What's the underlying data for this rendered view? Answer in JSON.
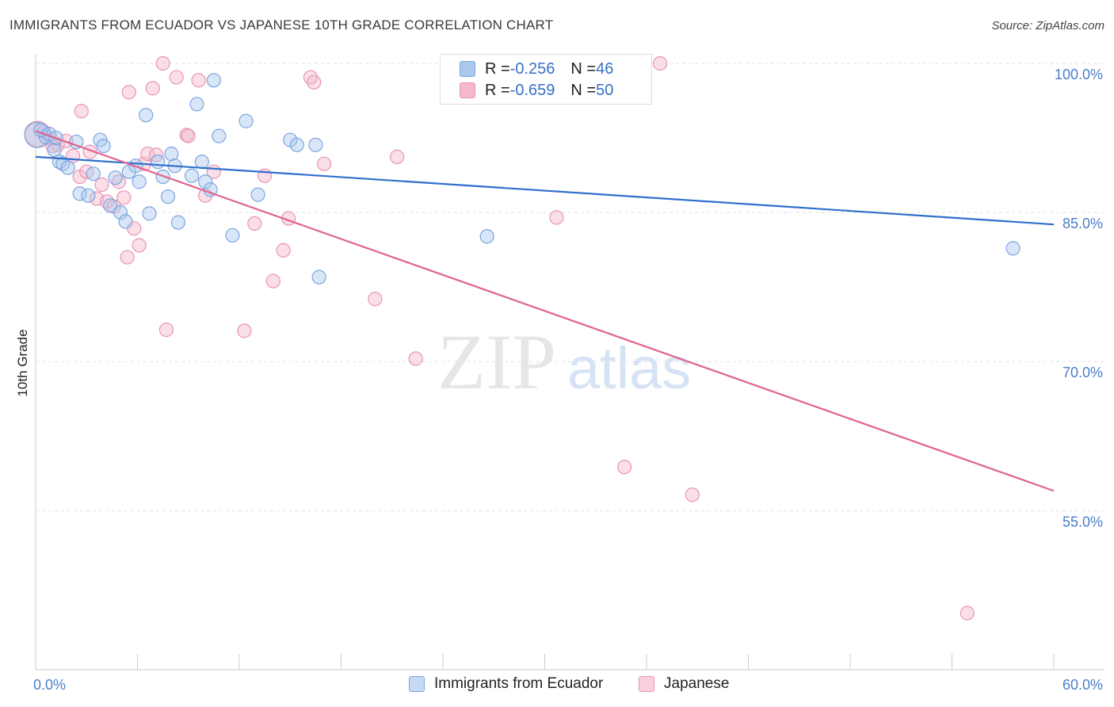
{
  "title": "IMMIGRANTS FROM ECUADOR VS JAPANESE 10TH GRADE CORRELATION CHART",
  "source": "Source: ZipAtlas.com",
  "watermark": {
    "zip": "ZIP",
    "atlas": "atlas"
  },
  "legend": {
    "series": [
      {
        "r_label": "R = ",
        "r_value": "-0.256",
        "n_label": "N = ",
        "n_value": "46"
      },
      {
        "r_label": "R = ",
        "r_value": "-0.659",
        "n_label": "N = ",
        "n_value": "50"
      }
    ]
  },
  "colors": {
    "blue_fill": "#aac8ee",
    "blue_stroke": "#7ba6e0",
    "blue_line": "#2f6fcc",
    "pink_fill": "#f5b8cd",
    "pink_stroke": "#e994b3",
    "pink_line": "#e0648f",
    "grid": "#e0e0e0",
    "tick_label": "#4a7ec9"
  },
  "chart_data": {
    "type": "scatter",
    "title": "IMMIGRANTS FROM ECUADOR VS JAPANESE 10TH GRADE CORRELATION CHART",
    "xlabel": "",
    "ylabel": "10th Grade",
    "xlim": [
      0,
      60
    ],
    "ylim": [
      39,
      100
    ],
    "x_tick_labels": [
      "0.0%",
      "60.0%"
    ],
    "y_ticks": [
      55,
      70,
      85,
      100
    ],
    "y_tick_labels": [
      "55.0%",
      "70.0%",
      "85.0%",
      "100.0%"
    ],
    "grid": true,
    "series": [
      {
        "name": "Immigrants from Ecuador",
        "r": -0.256,
        "n": 46,
        "trend": {
          "x": [
            0,
            60
          ],
          "y": [
            90.6,
            83.8
          ]
        },
        "points": [
          [
            0.1,
            92.8
          ],
          [
            0.6,
            92.6
          ],
          [
            1.1,
            91.3
          ],
          [
            1.4,
            90.1
          ],
          [
            1.6,
            89.9
          ],
          [
            1.9,
            89.5
          ],
          [
            2.4,
            92.1
          ],
          [
            2.6,
            86.9
          ],
          [
            3.1,
            86.7
          ],
          [
            3.4,
            88.9
          ],
          [
            3.8,
            92.3
          ],
          [
            4.0,
            91.7
          ],
          [
            4.4,
            85.7
          ],
          [
            4.7,
            88.5
          ],
          [
            5.0,
            85.0
          ],
          [
            5.3,
            84.1
          ],
          [
            5.5,
            89.1
          ],
          [
            5.9,
            89.7
          ],
          [
            6.1,
            88.1
          ],
          [
            6.5,
            94.8
          ],
          [
            6.7,
            84.9
          ],
          [
            7.2,
            90.1
          ],
          [
            7.5,
            88.6
          ],
          [
            7.8,
            86.6
          ],
          [
            8.0,
            90.9
          ],
          [
            8.2,
            89.7
          ],
          [
            8.4,
            84.0
          ],
          [
            9.2,
            88.7
          ],
          [
            9.5,
            95.9
          ],
          [
            9.8,
            90.1
          ],
          [
            10.0,
            88.1
          ],
          [
            10.3,
            87.3
          ],
          [
            10.5,
            98.3
          ],
          [
            10.8,
            92.7
          ],
          [
            11.6,
            82.7
          ],
          [
            12.4,
            94.2
          ],
          [
            13.1,
            86.8
          ],
          [
            15.0,
            92.3
          ],
          [
            15.4,
            91.8
          ],
          [
            16.5,
            91.8
          ],
          [
            16.7,
            78.5
          ],
          [
            26.6,
            82.6
          ],
          [
            57.6,
            81.4
          ],
          [
            0.3,
            93.3
          ],
          [
            0.8,
            92.9
          ],
          [
            1.2,
            92.5
          ]
        ]
      },
      {
        "name": "Japanese",
        "r": -0.659,
        "n": 50,
        "trend": {
          "x": [
            0,
            60
          ],
          "y": [
            93.2,
            57.0
          ]
        },
        "points": [
          [
            0.1,
            92.9
          ],
          [
            0.5,
            93.1
          ],
          [
            0.9,
            92.4
          ],
          [
            1.3,
            91.8
          ],
          [
            1.8,
            92.2
          ],
          [
            2.2,
            90.7
          ],
          [
            2.6,
            88.6
          ],
          [
            2.7,
            95.2
          ],
          [
            3.0,
            89.1
          ],
          [
            3.2,
            91.1
          ],
          [
            3.6,
            86.4
          ],
          [
            3.9,
            87.8
          ],
          [
            4.2,
            86.1
          ],
          [
            4.6,
            85.6
          ],
          [
            4.9,
            88.1
          ],
          [
            5.2,
            86.5
          ],
          [
            5.4,
            80.5
          ],
          [
            5.5,
            97.1
          ],
          [
            5.8,
            83.4
          ],
          [
            6.1,
            81.7
          ],
          [
            6.4,
            89.9
          ],
          [
            6.6,
            90.9
          ],
          [
            6.9,
            97.5
          ],
          [
            7.1,
            90.8
          ],
          [
            7.5,
            100.0
          ],
          [
            7.7,
            73.2
          ],
          [
            8.3,
            98.6
          ],
          [
            8.9,
            92.8
          ],
          [
            9.0,
            92.7
          ],
          [
            9.6,
            98.3
          ],
          [
            10.0,
            86.7
          ],
          [
            10.5,
            89.1
          ],
          [
            12.3,
            73.1
          ],
          [
            12.9,
            83.9
          ],
          [
            13.5,
            88.7
          ],
          [
            14.0,
            78.1
          ],
          [
            14.6,
            81.2
          ],
          [
            14.9,
            84.4
          ],
          [
            16.2,
            98.6
          ],
          [
            16.4,
            98.1
          ],
          [
            17.0,
            89.9
          ],
          [
            20.0,
            76.3
          ],
          [
            21.3,
            90.6
          ],
          [
            22.4,
            70.3
          ],
          [
            30.7,
            84.5
          ],
          [
            34.7,
            59.4
          ],
          [
            38.7,
            56.6
          ],
          [
            54.9,
            44.7
          ],
          [
            36.8,
            100.0
          ],
          [
            1.0,
            91.7
          ]
        ]
      }
    ]
  },
  "bottom_legend": [
    "Immigrants from Ecuador",
    "Japanese"
  ]
}
